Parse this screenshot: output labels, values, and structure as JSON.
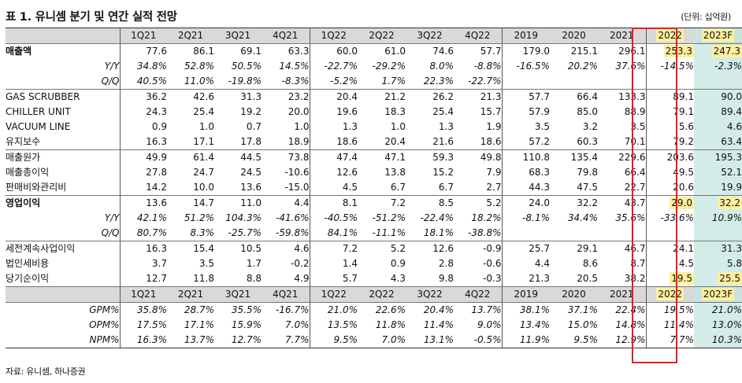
{
  "title": "표 1. 유니셈 분기 및 연간 실적 전망",
  "unit": "(단위: 십억원)",
  "columns": [
    "1Q21",
    "2Q21",
    "3Q21",
    "4Q21",
    "1Q22",
    "2Q22",
    "3Q22",
    "4Q22",
    "2019",
    "2020",
    "2021",
    "2022",
    "2023F"
  ],
  "rows_top": [
    {
      "label": "매출액",
      "bold": true,
      "values": [
        "77.6",
        "86.1",
        "69.1",
        "63.3",
        "60.0",
        "61.0",
        "74.6",
        "57.7",
        "179.0",
        "215.1",
        "296.1",
        "253.3",
        "247.3"
      ],
      "hl": [
        11,
        12
      ]
    },
    {
      "label": "Y/Y",
      "sub": true,
      "values": [
        "34.8%",
        "52.8%",
        "50.5%",
        "14.5%",
        "-22.7%",
        "-29.2%",
        "8.0%",
        "-8.8%",
        "-16.5%",
        "20.2%",
        "37.6%",
        "-14.5%",
        "-2.3%"
      ]
    },
    {
      "label": "Q/Q",
      "sub": true,
      "values": [
        "40.5%",
        "11.0%",
        "-19.8%",
        "-8.3%",
        "-5.2%",
        "1.7%",
        "22.3%",
        "-22.7%",
        "",
        "",
        "",
        "",
        ""
      ]
    },
    {
      "label": "GAS SCRUBBER",
      "sep": true,
      "values": [
        "36.2",
        "42.6",
        "31.3",
        "23.2",
        "20.4",
        "21.2",
        "26.2",
        "21.3",
        "57.7",
        "66.4",
        "133.3",
        "89.1",
        "90.0"
      ]
    },
    {
      "label": "CHILLER UNIT",
      "values": [
        "24.3",
        "25.4",
        "19.2",
        "20.0",
        "19.6",
        "18.3",
        "25.4",
        "15.7",
        "57.9",
        "85.0",
        "88.9",
        "79.1",
        "89.4"
      ]
    },
    {
      "label": "VACUUM LINE",
      "values": [
        "0.9",
        "1.0",
        "0.7",
        "1.0",
        "1.3",
        "1.0",
        "1.3",
        "1.9",
        "3.5",
        "3.2",
        "3.5",
        "5.6",
        "4.6"
      ]
    },
    {
      "label": "유지보수",
      "values": [
        "16.3",
        "17.1",
        "17.8",
        "18.9",
        "18.6",
        "20.4",
        "21.6",
        "18.6",
        "57.2",
        "60.3",
        "70.1",
        "79.2",
        "63.4"
      ]
    },
    {
      "label": "매출원가",
      "sep": true,
      "values": [
        "49.9",
        "61.4",
        "44.5",
        "73.8",
        "47.4",
        "47.1",
        "59.3",
        "49.8",
        "110.8",
        "135.4",
        "229.6",
        "203.6",
        "195.3"
      ]
    },
    {
      "label": "매출총이익",
      "values": [
        "27.8",
        "24.7",
        "24.5",
        "-10.6",
        "12.6",
        "13.8",
        "15.2",
        "7.9",
        "68.3",
        "79.8",
        "66.4",
        "49.5",
        "52.1"
      ]
    },
    {
      "label": "판매비와관리비",
      "values": [
        "14.2",
        "10.0",
        "13.6",
        "-15.0",
        "4.5",
        "6.7",
        "6.7",
        "2.7",
        "44.3",
        "47.5",
        "22.7",
        "20.6",
        "19.9"
      ]
    },
    {
      "label": "영업이익",
      "bold": true,
      "sep": true,
      "values": [
        "13.6",
        "14.7",
        "11.0",
        "4.4",
        "8.1",
        "7.2",
        "8.5",
        "5.2",
        "24.0",
        "32.2",
        "43.7",
        "29.0",
        "32.2"
      ],
      "hl": [
        11,
        12
      ]
    },
    {
      "label": "Y/Y",
      "sub": true,
      "values": [
        "42.1%",
        "51.2%",
        "104.3%",
        "-41.6%",
        "-40.5%",
        "-51.2%",
        "-22.4%",
        "18.2%",
        "-8.1%",
        "34.4%",
        "35.6%",
        "-33.6%",
        "10.9%"
      ]
    },
    {
      "label": "Q/Q",
      "sub": true,
      "values": [
        "80.7%",
        "8.3%",
        "-25.7%",
        "-59.8%",
        "84.1%",
        "-11.1%",
        "18.1%",
        "-38.8%",
        "",
        "",
        "",
        "",
        ""
      ]
    },
    {
      "label": "세전계속사업이익",
      "sep": true,
      "values": [
        "16.3",
        "15.4",
        "10.5",
        "4.6",
        "7.2",
        "5.2",
        "12.6",
        "-0.9",
        "25.7",
        "29.1",
        "46.7",
        "24.1",
        "31.3"
      ]
    },
    {
      "label": "법인세비용",
      "values": [
        "3.7",
        "3.5",
        "1.7",
        "-0.2",
        "1.4",
        "0.9",
        "2.8",
        "-0.6",
        "4.4",
        "8.6",
        "8.7",
        "4.5",
        "5.8"
      ]
    },
    {
      "label": "당기순이익",
      "values": [
        "12.7",
        "11.8",
        "8.8",
        "4.9",
        "5.7",
        "4.3",
        "9.8",
        "-0.3",
        "21.3",
        "20.5",
        "38.2",
        "19.5",
        "25.5"
      ],
      "hl": [
        11,
        12
      ]
    }
  ],
  "rows_bottom": [
    {
      "label": "GPM%",
      "values": [
        "35.8%",
        "28.7%",
        "35.5%",
        "-16.7%",
        "21.0%",
        "22.6%",
        "20.4%",
        "13.7%",
        "38.1%",
        "37.1%",
        "22.4%",
        "19.5%",
        "21.0%"
      ]
    },
    {
      "label": "OPM%",
      "values": [
        "17.5%",
        "17.1%",
        "15.9%",
        "7.0%",
        "13.5%",
        "11.8%",
        "11.4%",
        "9.0%",
        "13.4%",
        "15.0%",
        "14.8%",
        "11.4%",
        "13.0%"
      ]
    },
    {
      "label": "NPM%",
      "values": [
        "16.3%",
        "13.7%",
        "12.7%",
        "7.7%",
        "9.5%",
        "7.0%",
        "13.1%",
        "-0.5%",
        "11.9%",
        "9.5%",
        "12.9%",
        "7.7%",
        "10.3%"
      ]
    }
  ],
  "header_highlight": [
    11,
    12
  ],
  "source": "자료: 유니셈, 하나증권",
  "colors": {
    "highlight": "#fff0a0",
    "forecast_bg": "#d3ece8",
    "box": "#e02020",
    "header_bg": "#d9d9d9"
  }
}
